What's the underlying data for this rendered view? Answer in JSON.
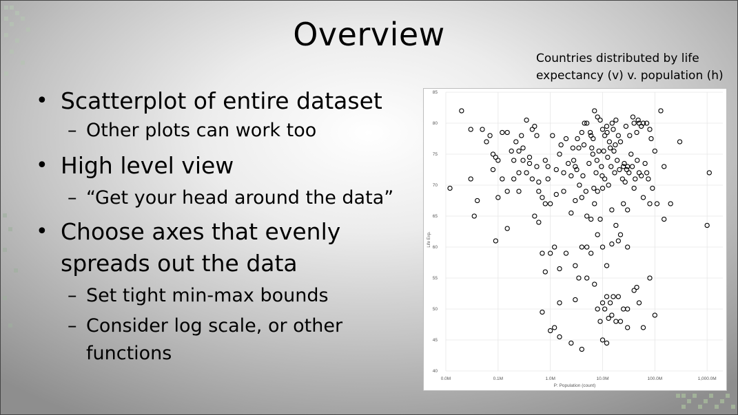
{
  "slide": {
    "title": "Overview",
    "bullets": [
      {
        "level": 1,
        "text": "Scatterplot of entire dataset"
      },
      {
        "level": 2,
        "text": "Other plots can work too"
      },
      {
        "level": 1,
        "text": "High level view"
      },
      {
        "level": 2,
        "text": "“Get your head around the data”"
      },
      {
        "level": 1,
        "text": "Choose axes that evenly spreads out the data"
      },
      {
        "level": 2,
        "text": "Set tight min-max bounds"
      },
      {
        "level": 2,
        "text": "Consider log scale, or other functions"
      }
    ],
    "chart_caption": "Countries distributed by life expectancy (v) v. population (h)"
  },
  "colors": {
    "point_stroke": "#000000",
    "grid": "#e6e6e6",
    "tick_text": "#555555"
  },
  "chart_data": {
    "type": "scatter",
    "xlabel": "P: Population (count)",
    "ylabel": "Life Exp.",
    "x_scale": "log",
    "xlim": [
      0.01,
      2000
    ],
    "ylim": [
      40,
      85
    ],
    "x_ticks": [
      0.01,
      0.1,
      1,
      10,
      100,
      1000
    ],
    "x_tick_labels": [
      "0.0M",
      "0.1M",
      "1.0M",
      "10.0M",
      "100.0M",
      "1,000.0M"
    ],
    "y_ticks": [
      40,
      45,
      50,
      55,
      60,
      65,
      70,
      75,
      80,
      85
    ],
    "y_tick_labels": [
      "40",
      "45",
      "50",
      "55",
      "60",
      "65",
      "70",
      "75",
      "80",
      "85"
    ],
    "grid": true,
    "points": [
      [
        0.012,
        69.5
      ],
      [
        0.02,
        82
      ],
      [
        0.03,
        79
      ],
      [
        0.05,
        79
      ],
      [
        0.07,
        78
      ],
      [
        0.09,
        74.5
      ],
      [
        0.1,
        74
      ],
      [
        0.12,
        78.5
      ],
      [
        0.15,
        78.5
      ],
      [
        0.2,
        74
      ],
      [
        0.25,
        75.5
      ],
      [
        0.3,
        76
      ],
      [
        0.35,
        80.5
      ],
      [
        0.45,
        79
      ],
      [
        0.5,
        79.5
      ],
      [
        0.03,
        71
      ],
      [
        0.04,
        67.5
      ],
      [
        0.035,
        65
      ],
      [
        0.06,
        77
      ],
      [
        0.08,
        75
      ],
      [
        0.12,
        71
      ],
      [
        0.1,
        68
      ],
      [
        0.15,
        63
      ],
      [
        0.2,
        71
      ],
      [
        0.25,
        69
      ],
      [
        0.08,
        72.5
      ],
      [
        0.3,
        74
      ],
      [
        0.4,
        73.5
      ],
      [
        0.55,
        78
      ],
      [
        0.6,
        69
      ],
      [
        0.7,
        68
      ],
      [
        0.8,
        74
      ],
      [
        0.9,
        71
      ],
      [
        1.0,
        67
      ],
      [
        1.1,
        78
      ],
      [
        1.3,
        72.5
      ],
      [
        1.5,
        75
      ],
      [
        1.8,
        69
      ],
      [
        2.0,
        77.5
      ],
      [
        2.5,
        71.5
      ],
      [
        3.0,
        73
      ],
      [
        3.5,
        76
      ],
      [
        4.0,
        78.5
      ],
      [
        4.5,
        80
      ],
      [
        5.0,
        80
      ],
      [
        6.0,
        78
      ],
      [
        7.0,
        82
      ],
      [
        8.0,
        81
      ],
      [
        9.0,
        80.5
      ],
      [
        10.0,
        79
      ],
      [
        11.0,
        78
      ],
      [
        12.0,
        79.5
      ],
      [
        14.0,
        76
      ],
      [
        16.0,
        79
      ],
      [
        18.0,
        80.5
      ],
      [
        22.0,
        77
      ],
      [
        25.0,
        73
      ],
      [
        30.0,
        73
      ],
      [
        35.0,
        75
      ],
      [
        40.0,
        80
      ],
      [
        50.0,
        80
      ],
      [
        60.0,
        80
      ],
      [
        70.0,
        72
      ],
      [
        80.0,
        79
      ],
      [
        100.0,
        75.5
      ],
      [
        130.0,
        82
      ],
      [
        150.0,
        73
      ],
      [
        300.0,
        77
      ],
      [
        1100.0,
        72
      ],
      [
        0.09,
        61
      ],
      [
        0.5,
        65
      ],
      [
        0.6,
        64
      ],
      [
        0.8,
        67
      ],
      [
        0.7,
        59
      ],
      [
        1.0,
        59
      ],
      [
        1.2,
        60
      ],
      [
        1.3,
        68.5
      ],
      [
        2.5,
        65.5
      ],
      [
        3.0,
        67.5
      ],
      [
        4.0,
        68
      ],
      [
        5.0,
        65
      ],
      [
        6.0,
        64.5
      ],
      [
        7.0,
        67
      ],
      [
        8.0,
        69
      ],
      [
        9.0,
        64.5
      ],
      [
        10.0,
        69.5
      ],
      [
        13.0,
        70
      ],
      [
        15.0,
        66
      ],
      [
        18.0,
        63.5
      ],
      [
        22.0,
        62
      ],
      [
        25.0,
        67
      ],
      [
        30.0,
        66
      ],
      [
        40.0,
        69.5
      ],
      [
        50.0,
        72
      ],
      [
        60.0,
        68
      ],
      [
        80.0,
        67
      ],
      [
        110.0,
        67
      ],
      [
        150.0,
        64.5
      ],
      [
        200.0,
        67
      ],
      [
        1000.0,
        63.5
      ],
      [
        2.0,
        59
      ],
      [
        3.0,
        57
      ],
      [
        4.0,
        60
      ],
      [
        5.0,
        60
      ],
      [
        6.0,
        59
      ],
      [
        8.0,
        62
      ],
      [
        10.0,
        60
      ],
      [
        12.0,
        57
      ],
      [
        15.0,
        60.5
      ],
      [
        20.0,
        61
      ],
      [
        30.0,
        60
      ],
      [
        0.8,
        56
      ],
      [
        1.5,
        56.5
      ],
      [
        3.5,
        55
      ],
      [
        5.0,
        55
      ],
      [
        7.0,
        54
      ],
      [
        10.0,
        51
      ],
      [
        12.0,
        52
      ],
      [
        14.0,
        51
      ],
      [
        16.0,
        52
      ],
      [
        18.0,
        48
      ],
      [
        20.0,
        52
      ],
      [
        25.0,
        50
      ],
      [
        30.0,
        50
      ],
      [
        40.0,
        53
      ],
      [
        45.0,
        53.5
      ],
      [
        50.0,
        51
      ],
      [
        80.0,
        55
      ],
      [
        100.0,
        49
      ],
      [
        0.7,
        49.5
      ],
      [
        1.5,
        51
      ],
      [
        3.0,
        51.5
      ],
      [
        8.0,
        50
      ],
      [
        9.0,
        48
      ],
      [
        11.0,
        50
      ],
      [
        13.0,
        48.5
      ],
      [
        15.0,
        49
      ],
      [
        22.0,
        48
      ],
      [
        30.0,
        47
      ],
      [
        60.0,
        47
      ],
      [
        1.0,
        46.5
      ],
      [
        1.2,
        47
      ],
      [
        1.5,
        45.5
      ],
      [
        2.5,
        44.5
      ],
      [
        4.0,
        43.5
      ],
      [
        10.0,
        45
      ],
      [
        12.0,
        44.5
      ],
      [
        3.2,
        72.5
      ],
      [
        4.2,
        71.5
      ],
      [
        5.5,
        73.5
      ],
      [
        6.5,
        75
      ],
      [
        7.5,
        72
      ],
      [
        8.5,
        75.5
      ],
      [
        9.5,
        73
      ],
      [
        11.0,
        71
      ],
      [
        12.5,
        74.5
      ],
      [
        14.5,
        73
      ],
      [
        17.0,
        72
      ],
      [
        19.0,
        74
      ],
      [
        21.0,
        72.5
      ],
      [
        24.0,
        71
      ],
      [
        27.0,
        70.5
      ],
      [
        32.0,
        72
      ],
      [
        37.0,
        73
      ],
      [
        42.0,
        71
      ],
      [
        46.0,
        74
      ],
      [
        55.0,
        71.5
      ],
      [
        65.0,
        73.5
      ],
      [
        75.0,
        71
      ],
      [
        90.0,
        69.5
      ],
      [
        1.8,
        72
      ],
      [
        2.2,
        73.5
      ],
      [
        2.8,
        74
      ],
      [
        3.6,
        70
      ],
      [
        4.8,
        69
      ],
      [
        6.8,
        69.5
      ],
      [
        9.8,
        71.5
      ],
      [
        13.5,
        77
      ],
      [
        16.5,
        75.5
      ],
      [
        26.0,
        73.5
      ],
      [
        29.0,
        72.5
      ],
      [
        0.25,
        72
      ],
      [
        0.35,
        72
      ],
      [
        0.45,
        71
      ],
      [
        0.55,
        73
      ],
      [
        0.15,
        69
      ],
      [
        0.18,
        75.5
      ],
      [
        0.22,
        77
      ],
      [
        0.28,
        78
      ],
      [
        0.4,
        74.5
      ],
      [
        0.6,
        70.5
      ],
      [
        0.9,
        73
      ],
      [
        1.6,
        76.5
      ],
      [
        2.7,
        76
      ],
      [
        5.8,
        78.5
      ],
      [
        7.8,
        74
      ],
      [
        10.5,
        75.5
      ],
      [
        17.5,
        76.5
      ],
      [
        20.0,
        78
      ],
      [
        38.0,
        81
      ],
      [
        45.0,
        78.5
      ],
      [
        70.0,
        80
      ],
      [
        85.0,
        77.5
      ],
      [
        55.0,
        79.5
      ],
      [
        3.3,
        77.5
      ],
      [
        4.4,
        76.5
      ],
      [
        6.2,
        76
      ],
      [
        12.2,
        78.5
      ],
      [
        15.2,
        80
      ],
      [
        28.0,
        79.5
      ],
      [
        33.0,
        78
      ],
      [
        48.0,
        80.5
      ],
      [
        6.6,
        77.5
      ]
    ]
  }
}
